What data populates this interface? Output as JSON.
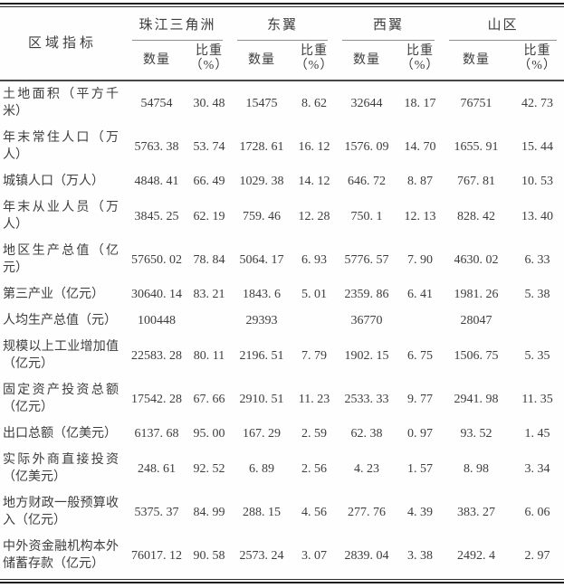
{
  "colors": {
    "background": "#ffffff",
    "text": "#3d3d3d",
    "rule_dark": "#1e1e1e",
    "rule_medium": "#474747",
    "rule_light": "#8f8f8f"
  },
  "table": {
    "indicator_header": "区域指标",
    "quantity_header": "数量",
    "share_header": {
      "line1": "比重",
      "line2": "（%）"
    },
    "groups": [
      {
        "name": "珠江三角洲"
      },
      {
        "name": "东翼"
      },
      {
        "name": "西翼"
      },
      {
        "name": "山区"
      }
    ],
    "rows": [
      {
        "label": "土地面积（平方千米）",
        "cells": [
          "54754",
          "30. 48",
          "15475",
          "8. 62",
          "32644",
          "18. 17",
          "76751",
          "42. 73"
        ]
      },
      {
        "label": "年末常住人口（万人）",
        "cells": [
          "5763. 38",
          "53. 74",
          "1728. 61",
          "16. 12",
          "1576. 09",
          "14. 70",
          "1655. 91",
          "15. 44"
        ]
      },
      {
        "label": "城镇人口（万人）",
        "cells": [
          "4848. 41",
          "66. 49",
          "1029. 38",
          "14. 12",
          "646. 72",
          "8. 87",
          "767. 81",
          "10. 53"
        ]
      },
      {
        "label": "年末从业人员（万人）",
        "cells": [
          "3845. 25",
          "62. 19",
          "759. 46",
          "12. 28",
          "750. 1",
          "12. 13",
          "828. 42",
          "13. 40"
        ]
      },
      {
        "label": "地区生产总值（亿元）",
        "cells": [
          "57650. 02",
          "78. 84",
          "5064. 17",
          "6. 93",
          "5776. 57",
          "7. 90",
          "4630. 02",
          "6. 33"
        ]
      },
      {
        "label": "第三产业（亿元）",
        "cells": [
          "30640. 14",
          "83. 21",
          "1843. 6",
          "5. 01",
          "2359. 86",
          "6. 41",
          "1981. 26",
          "5. 38"
        ]
      },
      {
        "label": "人均生产总值（元）",
        "cells": [
          "100448",
          "",
          "29393",
          "",
          "36770",
          "",
          "28047",
          ""
        ]
      },
      {
        "label": "规模以上工业增加值（亿元）",
        "cells": [
          "22583. 28",
          "80. 11",
          "2196. 51",
          "7. 79",
          "1902. 15",
          "6. 75",
          "1506. 75",
          "5. 35"
        ]
      },
      {
        "label": "固定资产投资总额（亿元）",
        "cells": [
          "17542. 28",
          "67. 66",
          "2910. 51",
          "11. 23",
          "2533. 33",
          "9. 77",
          "2941. 98",
          "11. 35"
        ]
      },
      {
        "label": "出口总额（亿美元）",
        "cells": [
          "6137. 68",
          "95. 00",
          "167. 29",
          "2. 59",
          "62. 38",
          "0. 97",
          "93. 52",
          "1. 45"
        ]
      },
      {
        "label": "实际外商直接投资（亿美元）",
        "cells": [
          "248. 61",
          "92. 52",
          "6. 89",
          "2. 56",
          "4. 23",
          "1. 57",
          "8. 98",
          "3. 34"
        ]
      },
      {
        "label": "地方财政一般预算收入（亿元）",
        "cells": [
          "5375. 37",
          "84. 99",
          "288. 15",
          "4. 56",
          "277. 76",
          "4. 39",
          "383. 27",
          "6. 06"
        ]
      },
      {
        "label": "中外资金融机构本外储蓄存款（亿元）",
        "cells": [
          "76017. 12",
          "90. 58",
          "2573. 24",
          "3. 07",
          "2839. 04",
          "3. 38",
          "2492. 4",
          "2. 97"
        ]
      }
    ]
  }
}
